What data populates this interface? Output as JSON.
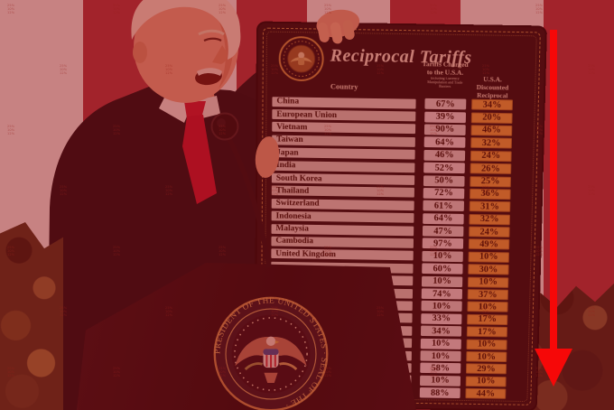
{
  "board": {
    "title": "Reciprocal Tariffs",
    "columns": {
      "country": "Country",
      "charged_line1": "Tariffs Charged",
      "charged_line2": "to the U.S.A.",
      "charged_sub": "Including Currency Manipulation and Trade Barriers",
      "discounted_line1": "U.S.A. Discounted",
      "discounted_line2": "Reciprocal Tariffs"
    },
    "rows": [
      {
        "country": "China",
        "charged": "67%",
        "discounted": "34%"
      },
      {
        "country": "European Union",
        "charged": "39%",
        "discounted": "20%"
      },
      {
        "country": "Vietnam",
        "charged": "90%",
        "discounted": "46%"
      },
      {
        "country": "Taiwan",
        "charged": "64%",
        "discounted": "32%"
      },
      {
        "country": "Japan",
        "charged": "46%",
        "discounted": "24%"
      },
      {
        "country": "India",
        "charged": "52%",
        "discounted": "26%"
      },
      {
        "country": "South Korea",
        "charged": "50%",
        "discounted": "25%"
      },
      {
        "country": "Thailand",
        "charged": "72%",
        "discounted": "36%"
      },
      {
        "country": "Switzerland",
        "charged": "61%",
        "discounted": "31%"
      },
      {
        "country": "Indonesia",
        "charged": "64%",
        "discounted": "32%"
      },
      {
        "country": "Malaysia",
        "charged": "47%",
        "discounted": "24%"
      },
      {
        "country": "Cambodia",
        "charged": "97%",
        "discounted": "49%"
      },
      {
        "country": "United Kingdom",
        "charged": "10%",
        "discounted": "10%"
      },
      {
        "country": "",
        "charged": "60%",
        "discounted": "30%"
      },
      {
        "country": "",
        "charged": "10%",
        "discounted": "10%"
      },
      {
        "country": "",
        "charged": "74%",
        "discounted": "37%"
      },
      {
        "country": "",
        "charged": "10%",
        "discounted": "10%"
      },
      {
        "country": "",
        "charged": "33%",
        "discounted": "17%"
      },
      {
        "country": "",
        "charged": "34%",
        "discounted": "17%"
      },
      {
        "country": "",
        "charged": "10%",
        "discounted": "10%"
      },
      {
        "country": "",
        "charged": "10%",
        "discounted": "10%"
      },
      {
        "country": "",
        "charged": "58%",
        "discounted": "29%"
      },
      {
        "country": "",
        "charged": "10%",
        "discounted": "10%"
      },
      {
        "country": "",
        "charged": "88%",
        "discounted": "44%"
      }
    ]
  },
  "podium": {
    "seal_text": "PRESIDENT  OF  THE  UNITED  STATES    ·    SEAL  OF  THE    ·"
  },
  "watermark": {
    "lines": [
      "25%",
      "10%",
      "12%"
    ]
  },
  "annotations": {
    "arrow_direction": "down"
  },
  "colors": {
    "tint_overlay": "rgba(153,8,16,0.46)",
    "arrow_red": "#f60808",
    "board_gold_box": "#e3a23e",
    "board_background": "#1a0f12",
    "flag_red_stripe": "#ab3a44"
  }
}
